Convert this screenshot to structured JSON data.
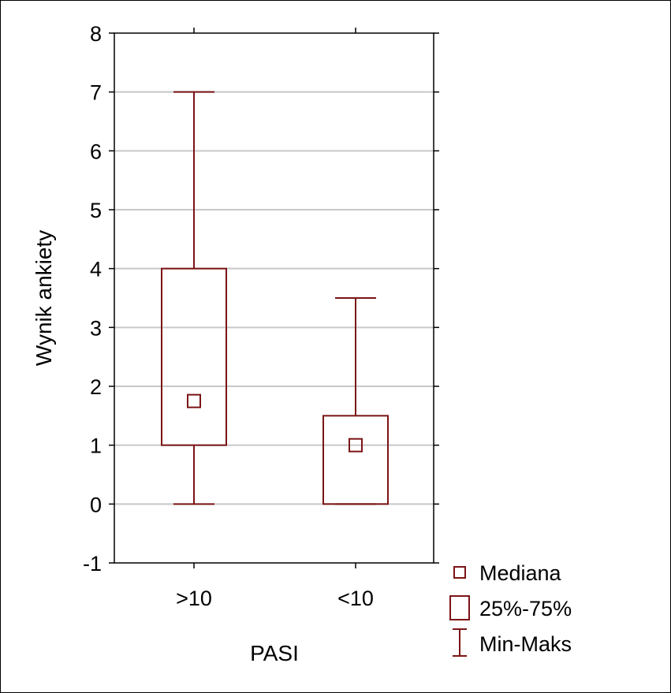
{
  "chart_data": {
    "type": "boxplot",
    "xlabel": "PASI",
    "ylabel": "Wynik ankiety",
    "ylim": [
      -1,
      8
    ],
    "yticks": [
      "-1",
      "0",
      "1",
      "2",
      "3",
      "4",
      "5",
      "6",
      "7",
      "8"
    ],
    "grid": true,
    "categories": [
      ">10",
      "<10"
    ],
    "boxes": [
      {
        "category": ">10",
        "min": 0,
        "q1": 1,
        "median": 1.75,
        "q3": 4,
        "max": 7
      },
      {
        "category": "<10",
        "min": 0,
        "q1": 0,
        "median": 1,
        "q3": 1.5,
        "max": 3.5
      }
    ],
    "legend": {
      "placement": "bottom-right",
      "entries": [
        "Mediana",
        "25%-75%",
        "Min-Maks"
      ]
    },
    "colors": {
      "series": "#7b1416",
      "grid": "#c8c8c8",
      "axis": "#000000"
    }
  }
}
